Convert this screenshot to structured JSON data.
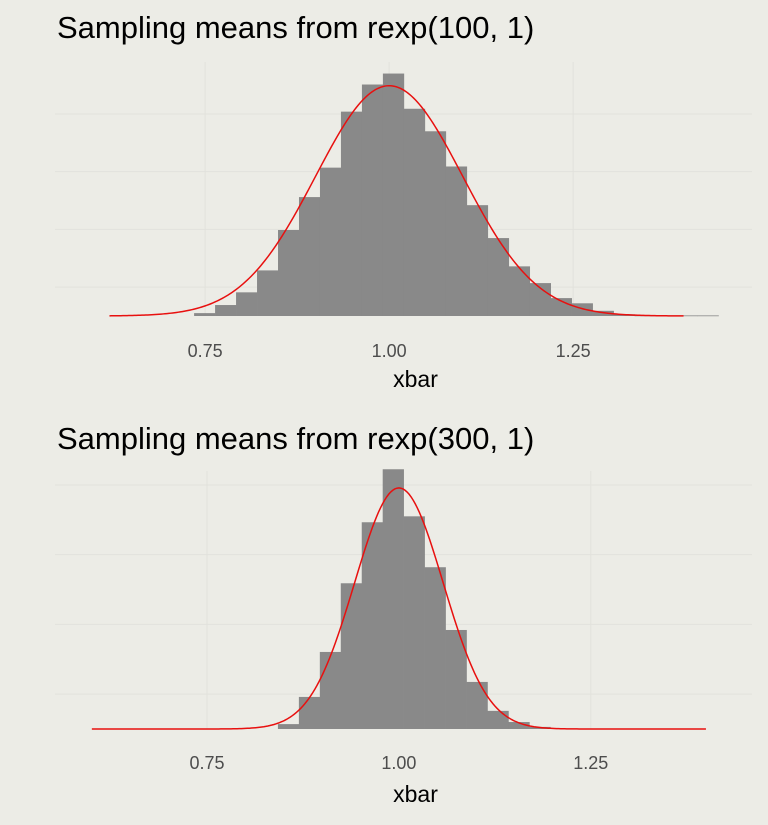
{
  "chart_data": [
    {
      "type": "histogram",
      "title": "Sampling means from rexp(100, 1)",
      "x_label": "xbar",
      "bins": [
        0.735,
        0.7635,
        0.792,
        0.8205,
        0.849,
        0.8775,
        0.906,
        0.9345,
        0.963,
        0.9915,
        1.02,
        1.0485,
        1.077,
        1.1055,
        1.134,
        1.1625,
        1.191,
        1.2195,
        1.248,
        1.2765,
        1.305,
        1.3335,
        1.362,
        1.3905,
        1.419,
        1.4475
      ],
      "values": [
        0.05,
        0.19,
        0.41,
        0.79,
        1.49,
        2.06,
        2.57,
        3.54,
        4.01,
        4.2,
        3.59,
        3.2,
        2.59,
        1.92,
        1.35,
        0.86,
        0.57,
        0.31,
        0.22,
        0.09,
        0.03,
        0.01,
        0.01,
        0.01,
        0.01
      ],
      "color": "#898989",
      "curve": {
        "mean": 1,
        "sd": 0.1,
        "xlim": [
          0.62,
          1.4
        ],
        "color": "#e8100f"
      },
      "xlim": [
        0.546,
        1.493
      ],
      "ylim": [
        0,
        4.4
      ],
      "xticks": [
        {
          "value": 0.75,
          "label": "0.75"
        },
        {
          "value": 1,
          "label": "1.00"
        },
        {
          "value": 1.25,
          "label": "1.25"
        }
      ],
      "ygrid": [
        0.5,
        1.5,
        2.5,
        3.5
      ],
      "grid": true
    },
    {
      "type": "histogram",
      "title": "Sampling means from rexp(300, 1)",
      "x_label": "xbar",
      "bins": [
        0.8424,
        0.8697,
        0.897,
        0.9243,
        0.9516,
        0.9789,
        1.0062,
        1.0335,
        1.0608,
        1.0881,
        1.1154,
        1.1427,
        1.17,
        1.1973
      ],
      "values": [
        0.14,
        0.92,
        2.21,
        4.18,
        5.93,
        7.45,
        6.1,
        4.64,
        2.84,
        1.35,
        0.52,
        0.2,
        0.06
      ],
      "color": "#898989",
      "curve": {
        "mean": 1,
        "sd": 0.0577,
        "xlim": [
          0.6,
          1.4
        ],
        "color": "#e8100f"
      },
      "xlim": [
        0.552,
        1.46
      ],
      "ylim": [
        0,
        7.4
      ],
      "xticks": [
        {
          "value": 0.75,
          "label": "0.75"
        },
        {
          "value": 1,
          "label": "1.00"
        },
        {
          "value": 1.25,
          "label": "1.25"
        }
      ],
      "ygrid": [
        1,
        3,
        5,
        7
      ],
      "grid": true
    }
  ]
}
